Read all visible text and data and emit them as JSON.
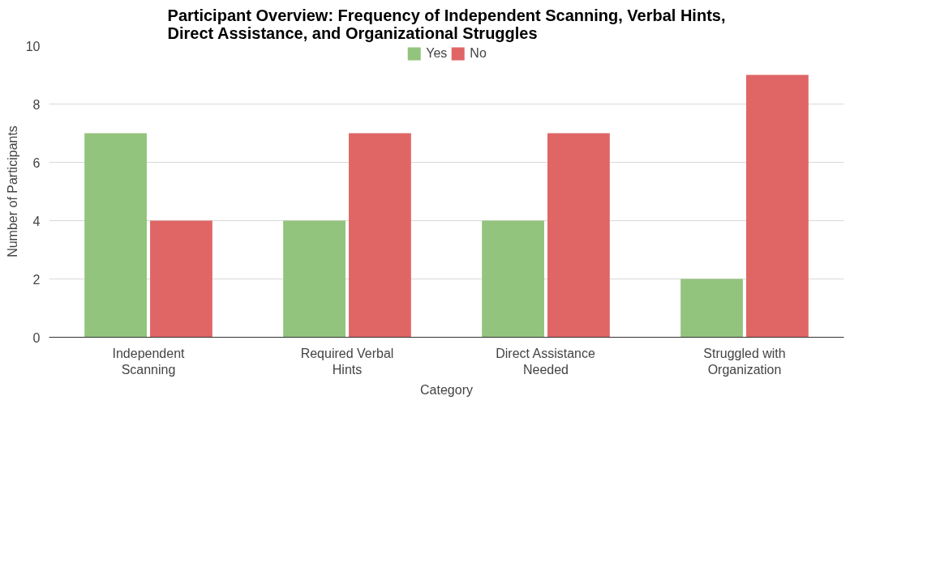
{
  "chart_data": {
    "type": "bar",
    "title": "Participant Overview: Frequency of Independent Scanning, Verbal Hints, Direct Assistance, and Organizational Struggles",
    "xlabel": "Category",
    "ylabel": "Number of Participants",
    "categories": [
      "Independent Scanning",
      "Required Verbal Hints",
      "Direct Assistance Needed",
      "Struggled with Organization"
    ],
    "series": [
      {
        "name": "Yes",
        "color": "#93c47d",
        "values": [
          7,
          4,
          4,
          2
        ]
      },
      {
        "name": "No",
        "color": "#e06666",
        "values": [
          4,
          7,
          7,
          9
        ]
      }
    ],
    "ylim": [
      0,
      10
    ],
    "yticks": [
      0,
      2,
      4,
      6,
      8,
      10
    ],
    "grid": "y",
    "legend": "top"
  }
}
